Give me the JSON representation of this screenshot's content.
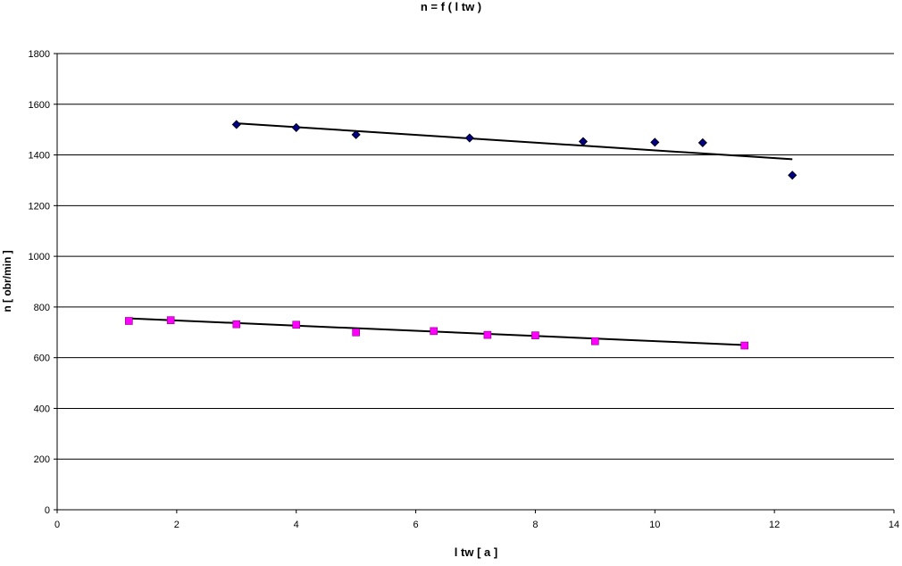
{
  "chart_data": {
    "type": "scatter",
    "title": "n = f ( l tw )",
    "xlabel": "l tw [ a ]",
    "ylabel": "n [ obr/min ]",
    "xlim": [
      0,
      14
    ],
    "ylim": [
      0,
      1800
    ],
    "x_ticks": [
      "0",
      "2",
      "4",
      "6",
      "8",
      "10",
      "12",
      "14"
    ],
    "y_ticks": [
      "0",
      "200",
      "400",
      "600",
      "800",
      "1000",
      "1200",
      "1400",
      "1600",
      "1800"
    ],
    "grid": "horizontal",
    "legend": "none",
    "series": [
      {
        "marker": "diamond",
        "color": "#000080",
        "points": [
          [
            3,
            1520
          ],
          [
            4,
            1508
          ],
          [
            5,
            1480
          ],
          [
            6.9,
            1467
          ],
          [
            8.8,
            1453
          ],
          [
            10,
            1450
          ],
          [
            10.8,
            1448
          ],
          [
            12.3,
            1320
          ]
        ],
        "trendline": [
          [
            3,
            1525
          ],
          [
            12.3,
            1383
          ]
        ]
      },
      {
        "marker": "square",
        "color": "#ff00ff",
        "points": [
          [
            1.2,
            745
          ],
          [
            1.9,
            748
          ],
          [
            3,
            732
          ],
          [
            4,
            730
          ],
          [
            5,
            700
          ],
          [
            6.3,
            705
          ],
          [
            7.2,
            690
          ],
          [
            8,
            688
          ],
          [
            9,
            665
          ],
          [
            11.5,
            648
          ]
        ],
        "trendline": [
          [
            1.2,
            755
          ],
          [
            11.5,
            650
          ]
        ]
      }
    ]
  }
}
